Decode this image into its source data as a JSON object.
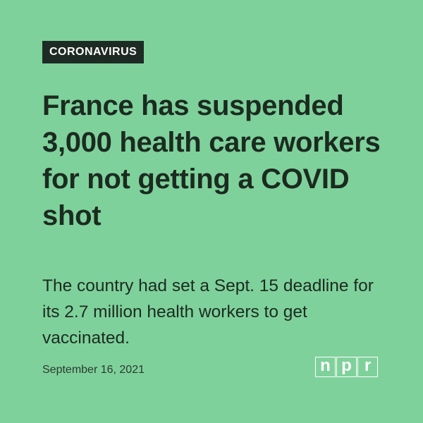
{
  "tag": "CORONAVIRUS",
  "headline": "France has suspended 3,000 health care workers for not getting a COVID shot",
  "subhead": "The country had set a Sept. 15 deadline for its 2.7 million health workers to get vaccinated.",
  "date": "September 16, 2021",
  "logo": {
    "letters": [
      "n",
      "p",
      "r"
    ]
  },
  "colors": {
    "background": "#7fd19b",
    "tag_bg": "#1e2b24",
    "text": "#1b2b20",
    "logo": "#ffffff"
  }
}
